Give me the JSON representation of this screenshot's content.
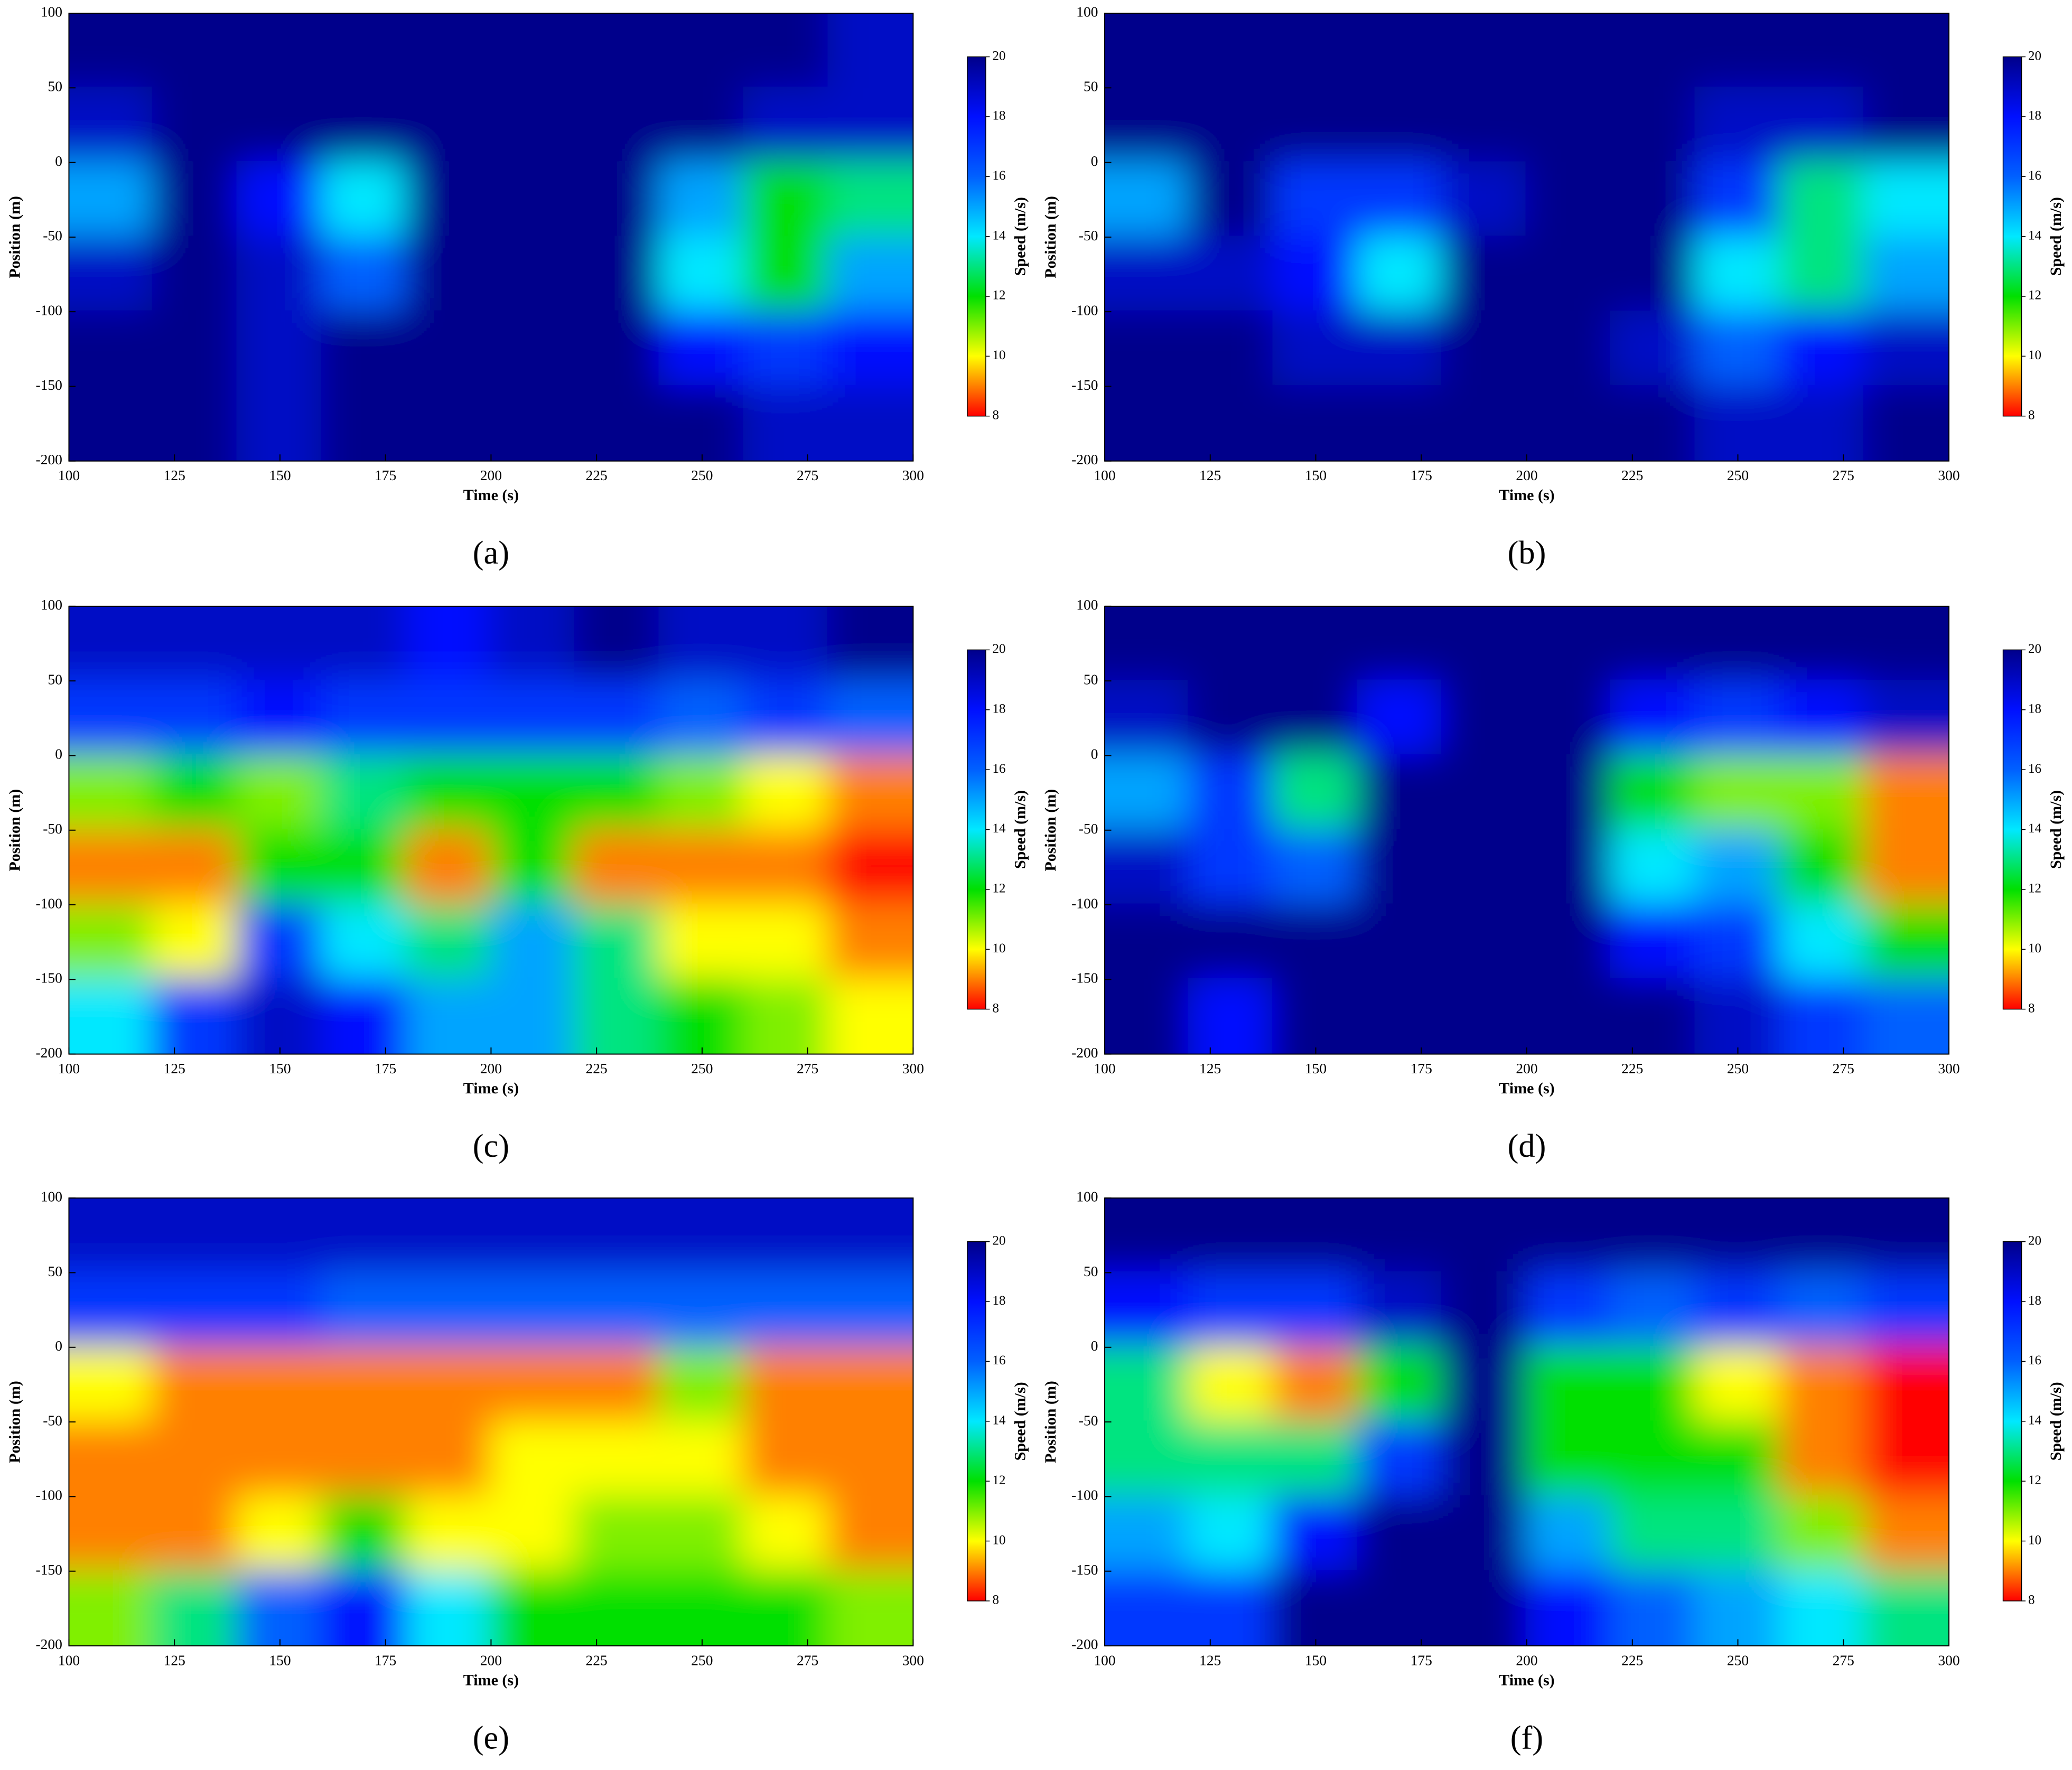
{
  "chart_data": [
    {
      "type": "heatmap",
      "label": "(a)",
      "xlabel": "Time (s)",
      "ylabel": "Position (m)",
      "colorbar_label": "Speed (m/s)",
      "xlim": [
        100,
        300
      ],
      "xticks": [
        100,
        125,
        150,
        175,
        200,
        225,
        250,
        275,
        300
      ],
      "ylim": [
        -200,
        100
      ],
      "yticks": [
        -200,
        -150,
        -100,
        -50,
        0,
        50,
        100
      ],
      "clim": [
        8,
        20
      ],
      "cticks": [
        8,
        10,
        12,
        14,
        16,
        18,
        20
      ],
      "colorscale": [
        "#ff0000",
        "#ffff00",
        "#00e000",
        "#00e8ff",
        "#0060ff",
        "#0010ff",
        "#00008b"
      ],
      "x": [
        110,
        130,
        150,
        170,
        190,
        210,
        230,
        250,
        270,
        290
      ],
      "y": [
        75,
        25,
        -25,
        -75,
        -125,
        -175
      ],
      "z": [
        [
          20,
          20,
          20,
          20,
          20,
          20,
          20,
          20,
          20,
          19
        ],
        [
          19,
          20,
          20,
          20,
          20,
          20,
          20,
          20,
          19,
          19
        ],
        [
          15,
          20,
          18,
          14,
          20,
          20,
          20,
          15,
          12,
          13
        ],
        [
          19,
          20,
          19,
          16,
          20,
          20,
          20,
          14,
          12,
          15
        ],
        [
          20,
          20,
          19,
          20,
          20,
          20,
          20,
          18,
          17,
          18
        ],
        [
          20,
          20,
          19,
          20,
          20,
          20,
          20,
          20,
          19,
          19
        ]
      ]
    },
    {
      "type": "heatmap",
      "label": "(b)",
      "xlabel": "Time (s)",
      "ylabel": "Position (m)",
      "colorbar_label": "Speed (m/s)",
      "xlim": [
        100,
        300
      ],
      "xticks": [
        100,
        125,
        150,
        175,
        200,
        225,
        250,
        275,
        300
      ],
      "ylim": [
        -200,
        100
      ],
      "yticks": [
        -200,
        -150,
        -100,
        -50,
        0,
        50,
        100
      ],
      "clim": [
        8,
        20
      ],
      "cticks": [
        8,
        10,
        12,
        14,
        16,
        18,
        20
      ],
      "colorscale": [
        "#ff0000",
        "#ffff00",
        "#00e000",
        "#00e8ff",
        "#0060ff",
        "#0010ff",
        "#00008b"
      ],
      "x": [
        110,
        130,
        150,
        170,
        190,
        210,
        230,
        250,
        270,
        290
      ],
      "y": [
        75,
        25,
        -25,
        -75,
        -125,
        -175
      ],
      "z": [
        [
          20,
          20,
          20,
          20,
          20,
          20,
          20,
          20,
          20,
          20
        ],
        [
          20,
          20,
          20,
          20,
          20,
          20,
          20,
          19,
          19,
          20
        ],
        [
          15,
          20,
          17,
          17,
          19,
          20,
          20,
          17,
          13,
          14
        ],
        [
          19,
          19,
          18,
          14,
          20,
          20,
          20,
          14,
          13,
          15
        ],
        [
          20,
          20,
          19,
          19,
          20,
          20,
          19,
          16,
          18,
          19
        ],
        [
          20,
          20,
          20,
          20,
          20,
          20,
          20,
          19,
          19,
          20
        ]
      ]
    },
    {
      "type": "heatmap",
      "label": "(c)",
      "xlabel": "Time (s)",
      "ylabel": "Position (m)",
      "colorbar_label": "Speed (m/s)",
      "xlim": [
        100,
        300
      ],
      "xticks": [
        100,
        125,
        150,
        175,
        200,
        225,
        250,
        275,
        300
      ],
      "ylim": [
        -200,
        100
      ],
      "yticks": [
        -200,
        -150,
        -100,
        -50,
        0,
        50,
        100
      ],
      "clim": [
        8,
        20
      ],
      "cticks": [
        8,
        10,
        12,
        14,
        16,
        18,
        20
      ],
      "colorscale": [
        "#ff0000",
        "#ffff00",
        "#00e000",
        "#00e8ff",
        "#0060ff",
        "#0010ff",
        "#00008b"
      ],
      "x": [
        110,
        130,
        150,
        170,
        190,
        210,
        230,
        250,
        270,
        290
      ],
      "y": [
        75,
        25,
        -25,
        -75,
        -125,
        -175
      ],
      "z": [
        [
          19,
          19,
          19,
          19,
          18,
          19,
          20,
          19,
          19,
          20
        ],
        [
          17,
          17,
          18,
          17,
          17,
          17,
          17,
          16,
          17,
          16
        ],
        [
          11,
          12,
          11,
          13,
          12,
          12,
          12,
          11,
          10,
          9
        ],
        [
          9,
          9,
          12,
          12,
          9,
          12,
          9,
          9,
          9,
          8
        ],
        [
          11,
          10,
          17,
          14,
          13,
          15,
          13,
          10,
          10,
          9
        ],
        [
          14,
          17,
          19,
          18,
          15,
          15,
          13,
          12,
          11,
          10
        ]
      ]
    },
    {
      "type": "heatmap",
      "label": "(d)",
      "xlabel": "Time (s)",
      "ylabel": "Position (m)",
      "colorbar_label": "Speed (m/s)",
      "xlim": [
        100,
        300
      ],
      "xticks": [
        100,
        125,
        150,
        175,
        200,
        225,
        250,
        275,
        300
      ],
      "ylim": [
        -200,
        100
      ],
      "yticks": [
        -200,
        -150,
        -100,
        -50,
        0,
        50,
        100
      ],
      "clim": [
        8,
        20
      ],
      "cticks": [
        8,
        10,
        12,
        14,
        16,
        18,
        20
      ],
      "colorscale": [
        "#ff0000",
        "#ffff00",
        "#00e000",
        "#00e8ff",
        "#0060ff",
        "#0010ff",
        "#00008b"
      ],
      "x": [
        110,
        130,
        150,
        170,
        190,
        210,
        230,
        250,
        270,
        290
      ],
      "y": [
        75,
        25,
        -25,
        -75,
        -125,
        -175
      ],
      "z": [
        [
          20,
          20,
          20,
          20,
          20,
          20,
          20,
          20,
          20,
          20
        ],
        [
          19,
          20,
          20,
          18,
          20,
          20,
          18,
          17,
          18,
          19
        ],
        [
          15,
          17,
          13,
          20,
          20,
          20,
          12,
          11,
          11,
          9
        ],
        [
          19,
          17,
          16,
          20,
          20,
          20,
          14,
          15,
          12,
          9
        ],
        [
          20,
          20,
          20,
          20,
          20,
          20,
          18,
          17,
          14,
          12
        ],
        [
          20,
          18,
          20,
          20,
          20,
          20,
          20,
          19,
          17,
          16
        ]
      ]
    },
    {
      "type": "heatmap",
      "label": "(e)",
      "xlabel": "Time (s)",
      "ylabel": "Position (m)",
      "colorbar_label": "Speed (m/s)",
      "xlim": [
        100,
        300
      ],
      "xticks": [
        100,
        125,
        150,
        175,
        200,
        225,
        250,
        275,
        300
      ],
      "ylim": [
        -200,
        100
      ],
      "yticks": [
        -200,
        -150,
        -100,
        -50,
        0,
        50,
        100
      ],
      "clim": [
        8,
        20
      ],
      "cticks": [
        8,
        10,
        12,
        14,
        16,
        18,
        20
      ],
      "colorscale": [
        "#ff0000",
        "#ffff00",
        "#00e000",
        "#00e8ff",
        "#0060ff",
        "#0010ff",
        "#00008b"
      ],
      "x": [
        110,
        130,
        150,
        170,
        190,
        210,
        230,
        250,
        270,
        290
      ],
      "y": [
        75,
        25,
        -25,
        -75,
        -125,
        -175
      ],
      "z": [
        [
          19,
          19,
          19,
          19,
          19,
          19,
          19,
          19,
          19,
          19
        ],
        [
          17,
          17,
          17,
          16,
          16,
          16,
          16,
          16,
          16,
          16
        ],
        [
          10,
          9,
          9,
          9,
          9,
          9,
          9,
          11,
          9,
          9
        ],
        [
          9,
          9,
          9,
          9,
          9,
          10,
          10,
          10,
          9,
          9
        ],
        [
          9,
          9,
          10,
          12,
          10,
          10,
          11,
          11,
          10,
          9
        ],
        [
          11,
          13,
          16,
          18,
          14,
          12,
          12,
          12,
          12,
          11
        ]
      ]
    },
    {
      "type": "heatmap",
      "label": "(f)",
      "xlabel": "Time (s)",
      "ylabel": "Position (m)",
      "colorbar_label": "Speed (m/s)",
      "xlim": [
        100,
        300
      ],
      "xticks": [
        100,
        125,
        150,
        175,
        200,
        225,
        250,
        275,
        300
      ],
      "ylim": [
        -200,
        100
      ],
      "yticks": [
        -200,
        -150,
        -100,
        -50,
        0,
        50,
        100
      ],
      "clim": [
        8,
        20
      ],
      "cticks": [
        8,
        10,
        12,
        14,
        16,
        18,
        20
      ],
      "colorscale": [
        "#ff0000",
        "#ffff00",
        "#00e000",
        "#00e8ff",
        "#0060ff",
        "#0010ff",
        "#00008b"
      ],
      "x": [
        110,
        130,
        150,
        170,
        190,
        210,
        230,
        250,
        270,
        290
      ],
      "y": [
        75,
        25,
        -25,
        -75,
        -125,
        -175
      ],
      "z": [
        [
          20,
          20,
          20,
          20,
          20,
          20,
          20,
          20,
          20,
          20
        ],
        [
          18,
          17,
          17,
          19,
          20,
          17,
          16,
          17,
          16,
          17
        ],
        [
          13,
          10,
          9,
          12,
          20,
          12,
          12,
          10,
          9,
          8
        ],
        [
          13,
          13,
          13,
          17,
          20,
          12,
          12,
          12,
          9,
          8
        ],
        [
          15,
          14,
          18,
          20,
          20,
          15,
          13,
          13,
          11,
          9
        ],
        [
          17,
          17,
          20,
          20,
          20,
          18,
          16,
          15,
          14,
          13
        ]
      ]
    }
  ]
}
